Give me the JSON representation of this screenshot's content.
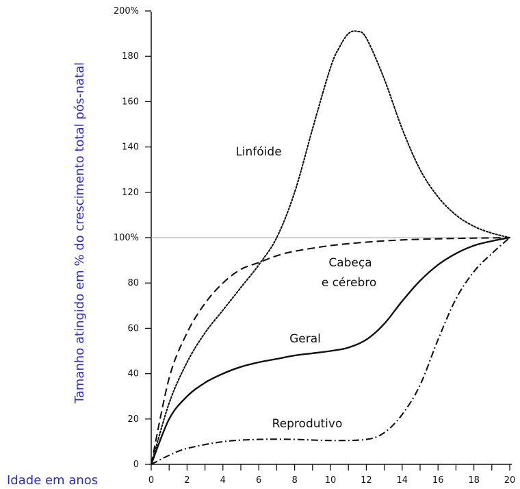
{
  "chart_data": {
    "type": "line",
    "title": "",
    "xlabel": "Idade em anos",
    "ylabel": "Tamanho atingido em % do crescimento total pós-natal",
    "xlim": [
      0,
      20
    ],
    "ylim": [
      0,
      200
    ],
    "x_ticks": [
      "0",
      "2",
      "4",
      "6",
      "8",
      "10",
      "12",
      "14",
      "16",
      "18",
      "20"
    ],
    "y_ticks": [
      "0",
      "20",
      "40",
      "60",
      "80",
      "100%",
      "120",
      "140",
      "160",
      "180",
      "200%"
    ],
    "reference_line_y": 100,
    "grid": false,
    "axis_title_color": "#2b2bd6",
    "series": [
      {
        "name": "Linfóide",
        "line_style": "dotted",
        "x": [
          0,
          1,
          2,
          3,
          4,
          5,
          6,
          7,
          8,
          9,
          10,
          10.5,
          11,
          11.5,
          12,
          13,
          14,
          15,
          16,
          17,
          18,
          19,
          20
        ],
        "y": [
          0,
          27,
          45,
          58,
          68,
          78,
          88,
          100,
          120,
          148,
          175,
          184,
          190,
          191,
          188,
          170,
          148,
          130,
          118,
          110,
          105,
          102,
          100
        ]
      },
      {
        "name": "Cabeça e cérebro",
        "line_style": "dashed",
        "x": [
          0,
          1,
          2,
          3,
          4,
          5,
          6,
          7,
          8,
          10,
          12,
          14,
          16,
          18,
          20
        ],
        "y": [
          0,
          38,
          58,
          71,
          80,
          86,
          89,
          92,
          94,
          96.5,
          98,
          99,
          99.5,
          99.8,
          100
        ]
      },
      {
        "name": "Geral",
        "line_style": "solid",
        "x": [
          0,
          1,
          2,
          3,
          4,
          5,
          6,
          7,
          8,
          9,
          10,
          11,
          12,
          13,
          14,
          15,
          16,
          17,
          18,
          19,
          20
        ],
        "y": [
          0,
          20,
          30,
          36,
          40,
          43,
          45,
          46.5,
          48,
          49,
          50,
          51.5,
          55,
          62,
          72,
          81,
          88,
          93,
          96.5,
          98.5,
          100
        ]
      },
      {
        "name": "Reprodutivo",
        "line_style": "dash-dot",
        "x": [
          0,
          1,
          2,
          4,
          6,
          8,
          10,
          12,
          13,
          14,
          15,
          16,
          17,
          18,
          19,
          20
        ],
        "y": [
          0,
          4,
          7,
          10,
          11,
          11,
          10.5,
          11,
          14,
          22,
          35,
          55,
          73,
          85,
          93,
          100
        ]
      }
    ],
    "series_labels": [
      {
        "lines": [
          "Linfóide"
        ]
      },
      {
        "lines": [
          "Cabeça",
          "e cérebro"
        ]
      },
      {
        "lines": [
          "Geral"
        ]
      },
      {
        "lines": [
          "Reprodutivo"
        ]
      }
    ]
  }
}
